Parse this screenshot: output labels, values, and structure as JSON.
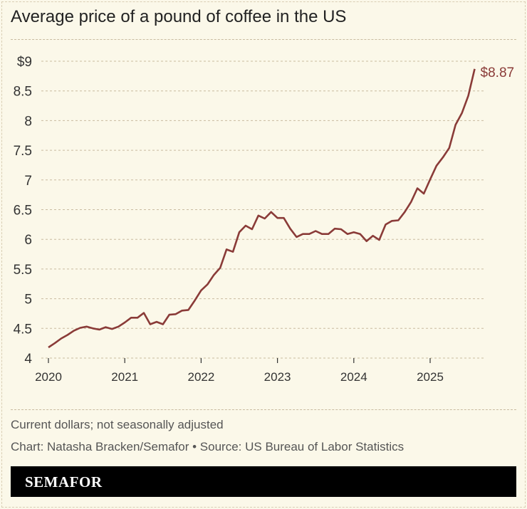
{
  "title": "Average price of a pound of coffee in the US",
  "notes": [
    "Current dollars; not seasonally adjusted",
    "Chart: Natasha Bracken/Semafor • Source: US Bureau of Labor Statistics"
  ],
  "brand": "SEMAFOR",
  "colors": {
    "line": "#8a3b38",
    "background": "#fbf8e9",
    "grid": "#c9bba0"
  },
  "chart_data": {
    "type": "line",
    "title": "Average price of a pound of coffee in the US",
    "x_start": "2020-01",
    "x_frequency": "monthly",
    "x_ticks": [
      "2020",
      "2021",
      "2022",
      "2023",
      "2024",
      "2025"
    ],
    "y_ticks": [
      "4",
      "4.5",
      "5",
      "5.5",
      "6",
      "6.5",
      "7",
      "7.5",
      "8",
      "8.5",
      "$9"
    ],
    "ylim": [
      4,
      9
    ],
    "grid": "horizontal dashed",
    "end_label": "$8.87",
    "values": [
      4.18,
      4.25,
      4.33,
      4.39,
      4.46,
      4.51,
      4.53,
      4.5,
      4.48,
      4.52,
      4.49,
      4.53,
      4.6,
      4.68,
      4.68,
      4.76,
      4.57,
      4.61,
      4.57,
      4.73,
      4.74,
      4.8,
      4.81,
      4.97,
      5.14,
      5.24,
      5.4,
      5.52,
      5.83,
      5.79,
      6.12,
      6.23,
      6.17,
      6.4,
      6.35,
      6.46,
      6.36,
      6.36,
      6.18,
      6.04,
      6.09,
      6.09,
      6.14,
      6.09,
      6.09,
      6.18,
      6.17,
      6.09,
      6.12,
      6.09,
      5.97,
      6.06,
      5.99,
      6.25,
      6.31,
      6.32,
      6.46,
      6.63,
      6.86,
      6.77,
      7.01,
      7.24,
      7.38,
      7.54,
      7.93,
      8.13,
      8.42,
      8.87
    ]
  }
}
